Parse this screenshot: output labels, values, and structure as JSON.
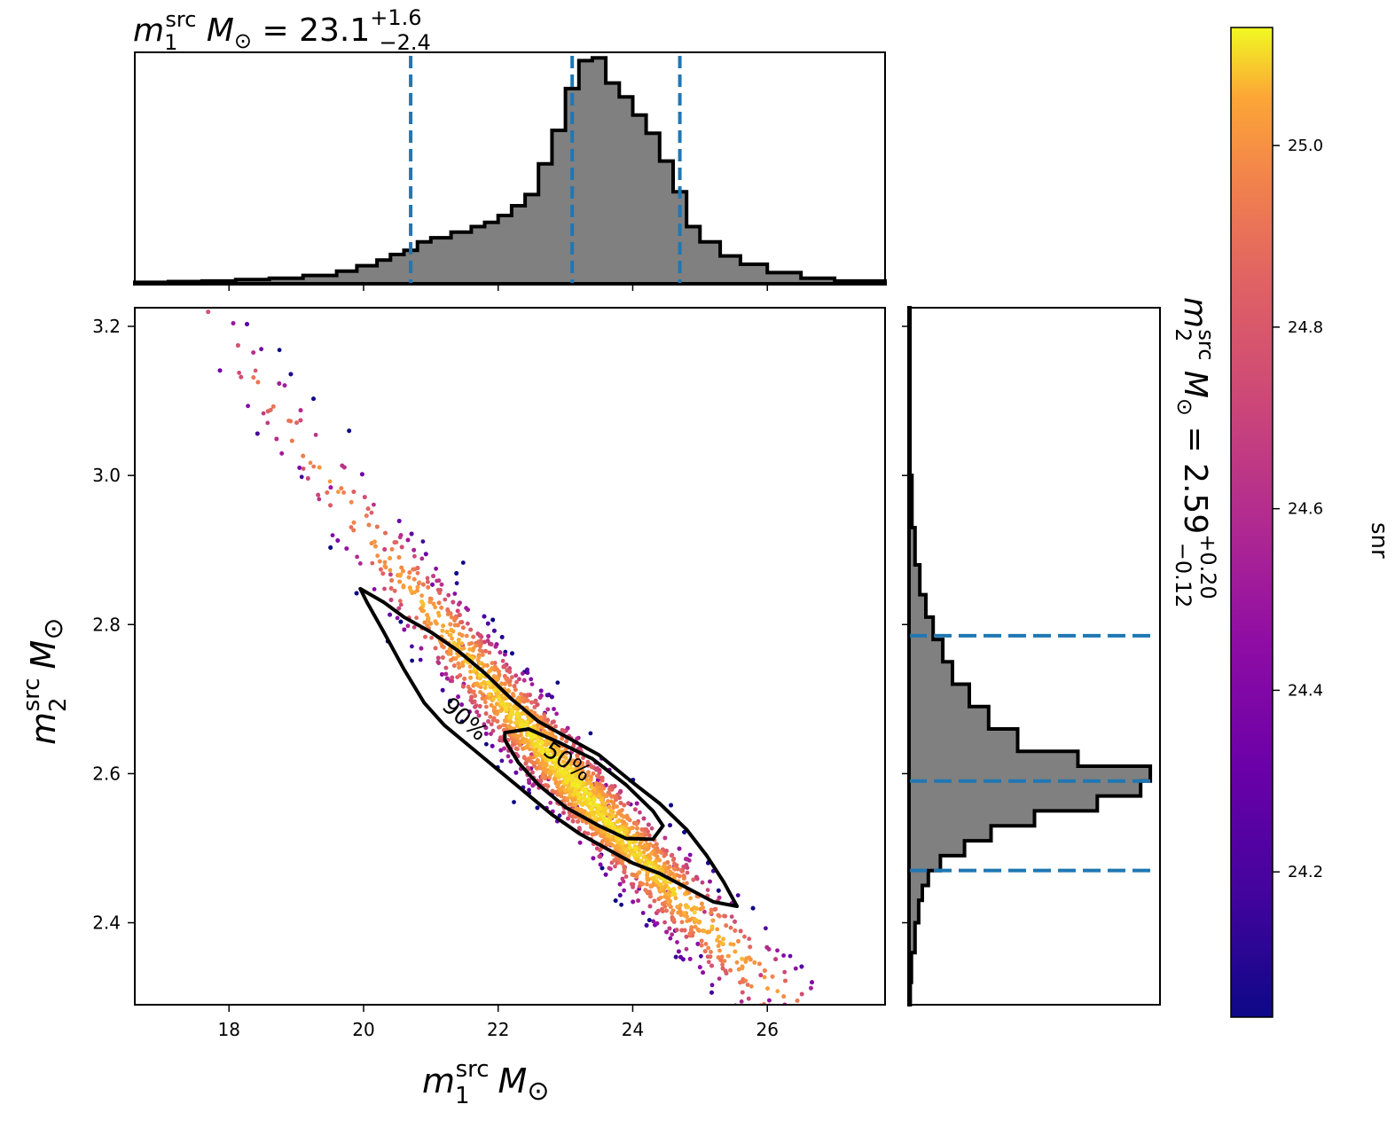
{
  "chart_data": {
    "type": "scatter",
    "x_parameter": {
      "label": "m1src M⊙",
      "ylabel_html": "m",
      "sub": "1",
      "sup": "src",
      "unit": "M",
      "sym": "⊙"
    },
    "y_parameter": {
      "label": "m2src M⊙",
      "sub": "2",
      "sup": "src",
      "unit": "M",
      "sym": "⊙"
    },
    "color_parameter": {
      "label": "snr",
      "range": [
        24.04,
        25.13
      ],
      "ticks": [
        24.2,
        24.4,
        24.6,
        24.8,
        25.0
      ],
      "colormap": "plasma"
    },
    "main_panel": {
      "xlim": [
        16.6,
        27.75
      ],
      "ylim": [
        2.29,
        3.225
      ],
      "xticks": [
        18,
        20,
        22,
        24,
        26
      ],
      "yticks": [
        2.4,
        2.6,
        2.8,
        3.0,
        3.2
      ],
      "contours": [
        {
          "level": "90%",
          "points": [
            [
              19.95,
              2.848
            ],
            [
              20.3,
              2.83
            ],
            [
              20.6,
              2.81
            ],
            [
              21.0,
              2.79
            ],
            [
              21.4,
              2.765
            ],
            [
              21.8,
              2.735
            ],
            [
              22.2,
              2.7
            ],
            [
              22.6,
              2.67
            ],
            [
              23.0,
              2.65
            ],
            [
              23.5,
              2.625
            ],
            [
              24.0,
              2.588
            ],
            [
              24.4,
              2.56
            ],
            [
              24.8,
              2.525
            ],
            [
              25.1,
              2.49
            ],
            [
              25.35,
              2.455
            ],
            [
              25.55,
              2.422
            ],
            [
              25.2,
              2.428
            ],
            [
              24.8,
              2.447
            ],
            [
              24.4,
              2.466
            ],
            [
              24.0,
              2.48
            ],
            [
              23.6,
              2.5
            ],
            [
              23.2,
              2.52
            ],
            [
              22.8,
              2.545
            ],
            [
              22.4,
              2.575
            ],
            [
              22.0,
              2.605
            ],
            [
              21.6,
              2.635
            ],
            [
              21.2,
              2.665
            ],
            [
              20.9,
              2.695
            ],
            [
              20.6,
              2.74
            ],
            [
              20.3,
              2.79
            ],
            [
              20.05,
              2.83
            ],
            [
              19.95,
              2.848
            ]
          ]
        },
        {
          "level": "50%",
          "points": [
            [
              22.1,
              2.655
            ],
            [
              22.45,
              2.66
            ],
            [
              22.9,
              2.642
            ],
            [
              23.4,
              2.62
            ],
            [
              23.9,
              2.585
            ],
            [
              24.3,
              2.55
            ],
            [
              24.45,
              2.53
            ],
            [
              24.3,
              2.512
            ],
            [
              23.9,
              2.513
            ],
            [
              23.5,
              2.53
            ],
            [
              23.0,
              2.555
            ],
            [
              22.6,
              2.585
            ],
            [
              22.3,
              2.615
            ],
            [
              22.1,
              2.645
            ],
            [
              22.1,
              2.655
            ]
          ]
        }
      ]
    },
    "top_hist": {
      "title": {
        "pre": "m",
        "sub": "1",
        "sup": "src",
        "mid": " M",
        "sym": "⊙",
        "eq": " = 23.1",
        "plus": "+1.6",
        "minus": "−2.4"
      },
      "median": 23.1,
      "lower": 20.7,
      "upper": 24.7,
      "bin_edges": [
        16.6,
        17.1,
        17.6,
        18.1,
        18.6,
        19.1,
        19.6,
        19.9,
        20.2,
        20.4,
        20.6,
        20.8,
        21.0,
        21.3,
        21.6,
        21.8,
        22.0,
        22.2,
        22.4,
        22.6,
        22.8,
        23.0,
        23.2,
        23.4,
        23.6,
        23.8,
        24.0,
        24.2,
        24.4,
        24.6,
        24.8,
        25.0,
        25.3,
        25.6,
        26.0,
        26.5,
        27.0,
        27.75
      ],
      "counts": [
        0.005,
        0.008,
        0.01,
        0.015,
        0.02,
        0.03,
        0.045,
        0.065,
        0.085,
        0.105,
        0.12,
        0.15,
        0.165,
        0.185,
        0.205,
        0.22,
        0.245,
        0.28,
        0.32,
        0.43,
        0.55,
        0.7,
        0.8,
        0.81,
        0.72,
        0.67,
        0.605,
        0.54,
        0.44,
        0.33,
        0.205,
        0.15,
        0.1,
        0.07,
        0.04,
        0.02,
        0.01
      ],
      "ylim": [
        0,
        0.83
      ]
    },
    "right_hist": {
      "title": {
        "pre": "m",
        "sub": "2",
        "sup": "src",
        "mid": " M",
        "sym": "⊙",
        "eq": " = 2.59",
        "plus": "+0.20",
        "minus": "−0.12"
      },
      "median": 2.59,
      "lower": 2.47,
      "upper": 2.785,
      "bin_edges": [
        2.29,
        2.32,
        2.36,
        2.4,
        2.43,
        2.45,
        2.47,
        2.49,
        2.51,
        2.53,
        2.55,
        2.57,
        2.59,
        2.61,
        2.63,
        2.66,
        2.69,
        2.72,
        2.75,
        2.78,
        2.81,
        2.84,
        2.88,
        2.93,
        3.0,
        3.225
      ],
      "counts": [
        0.005,
        0.01,
        0.025,
        0.04,
        0.055,
        0.08,
        0.13,
        0.23,
        0.34,
        0.52,
        0.78,
        0.96,
        1.0,
        0.7,
        0.45,
        0.33,
        0.25,
        0.18,
        0.14,
        0.1,
        0.07,
        0.045,
        0.025,
        0.012,
        0.004
      ],
      "xlim": [
        0,
        1.04
      ]
    }
  }
}
